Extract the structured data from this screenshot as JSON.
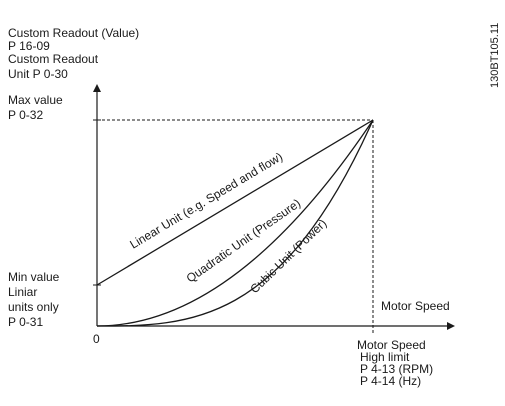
{
  "y_axis_title": {
    "line1": "Custom Readout (Value)",
    "line2": "P 16-09",
    "line3": "Custom Readout",
    "line4": "Unit P 0-30"
  },
  "max_value": {
    "line1": "Max value",
    "line2": "P 0-32"
  },
  "min_value": {
    "line1": "Min value",
    "line2": "Liniar",
    "line3": "units only",
    "line4": "P 0-31"
  },
  "origin_label": "0",
  "x_axis_title": "Motor Speed",
  "high_limit": {
    "line1": "Motor Speed",
    "line2": "High limit",
    "line3": "P 4-13 (RPM)",
    "line4": "P 4-14 (Hz)"
  },
  "curves": {
    "linear": "Linear Unit (e.g. Speed and flow)",
    "quadratic": "Quadratic Unit (Pressure)",
    "cubic": "Cubic Unit (Power)"
  },
  "reference_code": "130BT105.11",
  "colors": {
    "line": "#1a1a1a",
    "text": "#1a1a1a",
    "background": "#ffffff"
  }
}
